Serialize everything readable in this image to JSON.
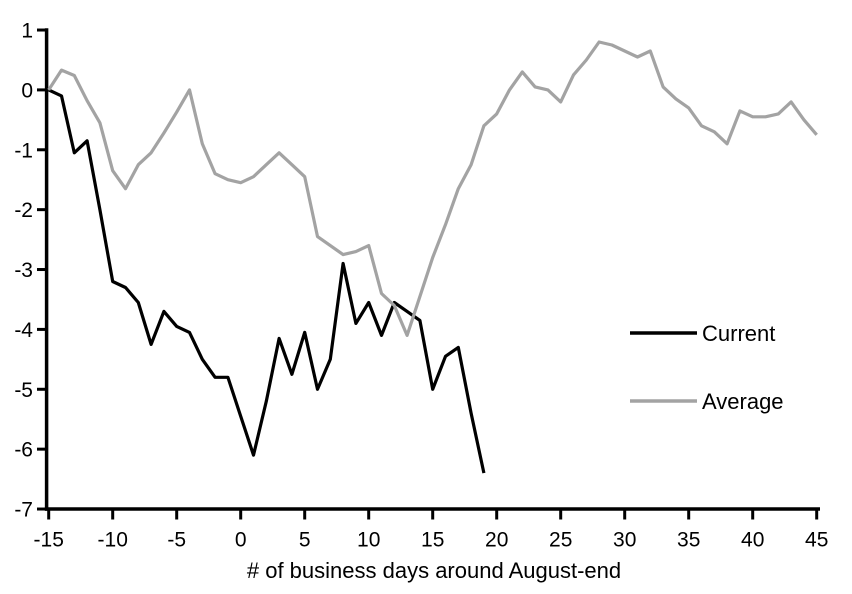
{
  "chart_data": {
    "type": "line",
    "title": "",
    "xlabel": "# of business days around August-end",
    "ylabel": "",
    "xlim": [
      -15,
      45
    ],
    "ylim": [
      -7,
      1
    ],
    "x_ticks": [
      -15,
      -10,
      -5,
      0,
      5,
      10,
      15,
      20,
      25,
      30,
      35,
      40,
      45
    ],
    "y_ticks": [
      1,
      0,
      -1,
      -2,
      -3,
      -4,
      -5,
      -6,
      -7
    ],
    "grid": false,
    "legend_position": "right-middle",
    "x_start": -15,
    "x_step": 1,
    "series": [
      {
        "name": "Current",
        "color": "#000000",
        "x_start": -15,
        "values": [
          0,
          -0.1,
          -1.05,
          -0.85,
          -2.0,
          -3.2,
          -3.3,
          -3.55,
          -4.25,
          -3.7,
          -3.95,
          -4.05,
          -4.5,
          -4.8,
          -4.8,
          -5.45,
          -6.1,
          -5.2,
          -4.15,
          -4.75,
          -4.05,
          -5.0,
          -4.5,
          -2.9,
          -3.9,
          -3.55,
          -4.1,
          -3.55,
          -3.7,
          -3.85,
          -5.0,
          -4.45,
          -4.3,
          -5.4,
          -6.4
        ]
      },
      {
        "name": "Average",
        "color": "#a3a3a3",
        "x_start": -15,
        "values": [
          0,
          0.33,
          0.24,
          -0.18,
          -0.55,
          -1.35,
          -1.65,
          -1.25,
          -1.05,
          -0.72,
          -0.37,
          0.0,
          -0.9,
          -1.4,
          -1.5,
          -1.55,
          -1.45,
          -1.25,
          -1.05,
          -1.25,
          -1.45,
          -2.45,
          -2.6,
          -2.75,
          -2.7,
          -2.6,
          -3.4,
          -3.6,
          -4.1,
          -3.45,
          -2.8,
          -2.25,
          -1.65,
          -1.25,
          -0.6,
          -0.4,
          0.0,
          0.3,
          0.05,
          0.0,
          -0.2,
          0.25,
          0.5,
          0.8,
          0.75,
          0.65,
          0.55,
          0.65,
          0.05,
          -0.15,
          -0.3,
          -0.6,
          -0.7,
          -0.9,
          -0.35,
          -0.45,
          -0.45,
          -0.4,
          -0.2,
          -0.5,
          -0.75
        ]
      }
    ],
    "axis_color": "#000000"
  }
}
